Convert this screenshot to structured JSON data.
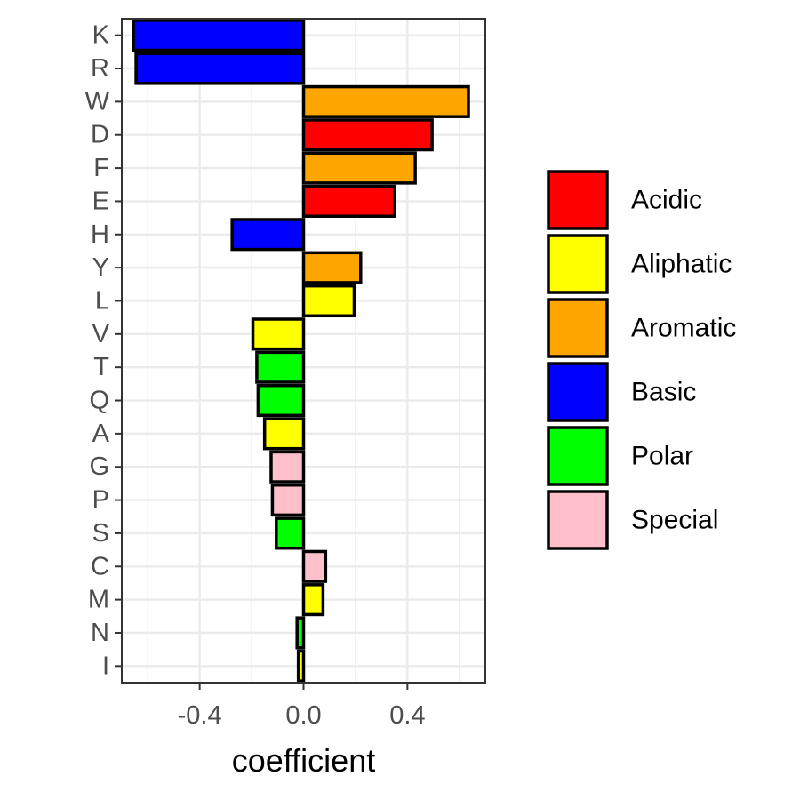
{
  "chart_data": {
    "type": "bar",
    "orientation": "horizontal",
    "title": "",
    "xlabel": "coefficient",
    "ylabel": "",
    "xlim": [
      -0.7,
      0.7
    ],
    "x_ticks": [
      -0.4,
      0.0,
      0.4
    ],
    "x_tick_labels": [
      "-0.4",
      "0.0",
      "0.4"
    ],
    "grid": true,
    "legend_placement": "right",
    "categories": [
      "K",
      "R",
      "W",
      "D",
      "F",
      "E",
      "H",
      "Y",
      "L",
      "V",
      "T",
      "Q",
      "A",
      "G",
      "P",
      "S",
      "C",
      "M",
      "N",
      "I"
    ],
    "values": [
      -0.655,
      -0.645,
      0.635,
      0.495,
      0.43,
      0.35,
      -0.275,
      0.22,
      0.195,
      -0.195,
      -0.18,
      -0.175,
      -0.15,
      -0.125,
      -0.12,
      -0.105,
      0.085,
      0.075,
      -0.025,
      -0.02
    ],
    "groups": [
      "Basic",
      "Basic",
      "Aromatic",
      "Acidic",
      "Aromatic",
      "Acidic",
      "Basic",
      "Aromatic",
      "Aliphatic",
      "Aliphatic",
      "Polar",
      "Polar",
      "Aliphatic",
      "Special",
      "Special",
      "Polar",
      "Special",
      "Aliphatic",
      "Polar",
      "Aliphatic"
    ],
    "legend": [
      {
        "name": "Acidic",
        "color": "#FF0000"
      },
      {
        "name": "Aliphatic",
        "color": "#FFFF00"
      },
      {
        "name": "Aromatic",
        "color": "#FFA500"
      },
      {
        "name": "Basic",
        "color": "#0000FF"
      },
      {
        "name": "Polar",
        "color": "#00FF00"
      },
      {
        "name": "Special",
        "color": "#FFC0CB"
      }
    ]
  }
}
